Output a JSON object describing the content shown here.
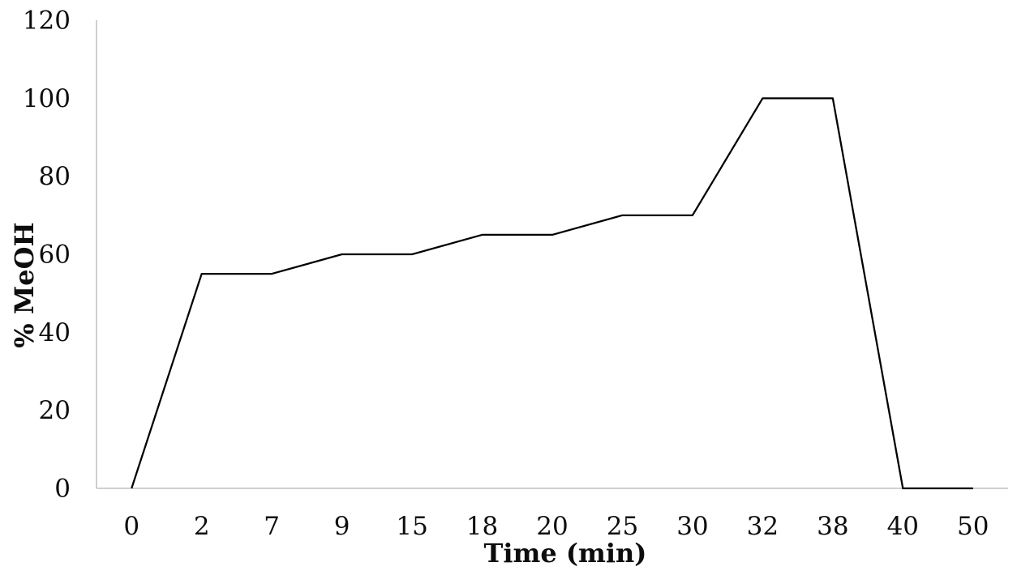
{
  "page": {
    "background": "#ffffff"
  },
  "chart": {
    "colors": {
      "line": "#000000",
      "axis": "#b3b3b3",
      "text": "#0d0d0d"
    }
  },
  "chart_data": {
    "type": "line",
    "categories": [
      0,
      2,
      7,
      9,
      15,
      18,
      20,
      25,
      30,
      32,
      38,
      40,
      50
    ],
    "values": [
      0,
      55,
      55,
      60,
      60,
      65,
      65,
      70,
      70,
      100,
      100,
      0,
      0
    ],
    "title": "",
    "xlabel": "Time (min)",
    "ylabel": "% MeOH",
    "ylim": [
      0,
      120
    ],
    "y_ticks": [
      0,
      20,
      40,
      60,
      80,
      100,
      120
    ],
    "grid": false,
    "legend": "none",
    "axis_style": "category x-axis, no tick marks, no gridlines, open top/right"
  }
}
